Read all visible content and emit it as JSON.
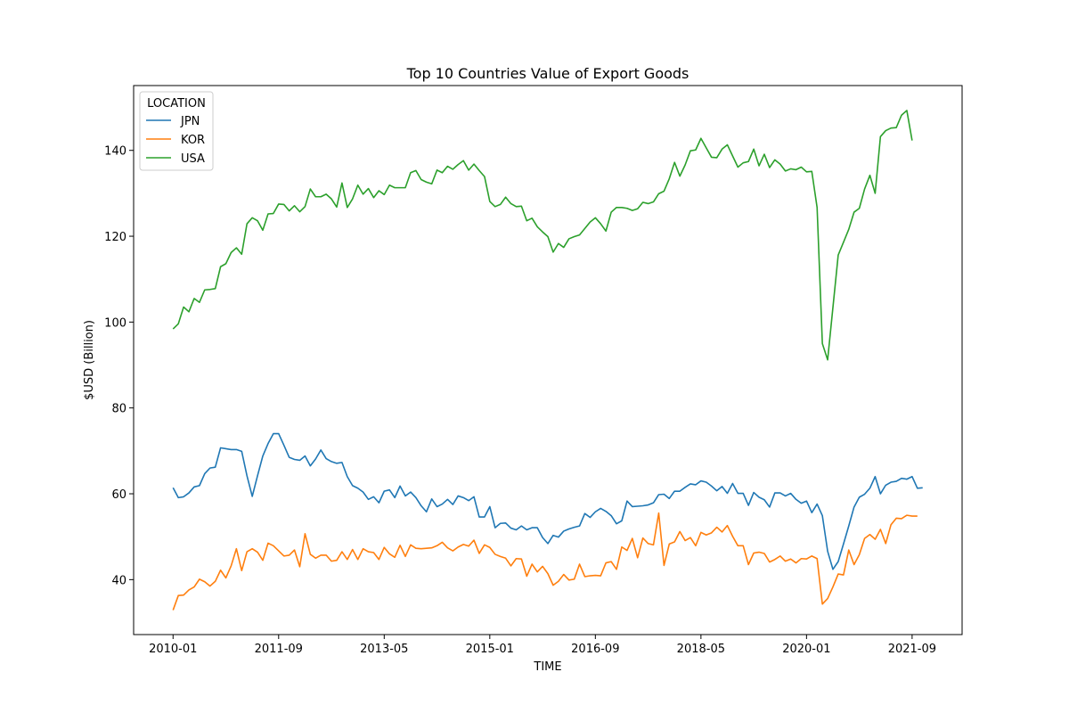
{
  "chart_data": {
    "type": "line",
    "title": "Top 10 Countries Value of Export Goods",
    "xlabel": "TIME",
    "ylabel": "$USD (Billion)",
    "x_ticks": [
      "2010-01",
      "2011-09",
      "2013-05",
      "2015-01",
      "2016-09",
      "2018-05",
      "2020-01",
      "2021-09"
    ],
    "y_ticks": [
      40,
      60,
      80,
      100,
      120,
      140
    ],
    "ylim": [
      27.2,
      155.1
    ],
    "legend_title": "LOCATION",
    "legend_position": "upper-left",
    "grid": false,
    "x_start": "2010-01",
    "series": [
      {
        "name": "JPN",
        "color": "#1f77b4",
        "values": [
          61.4,
          59.1,
          59.3,
          60.2,
          61.6,
          61.9,
          64.7,
          66.0,
          66.2,
          70.7,
          70.5,
          70.3,
          70.3,
          69.9,
          64.2,
          59.4,
          64.2,
          68.8,
          71.7,
          74.0,
          74.0,
          71.3,
          68.5,
          68.0,
          67.8,
          68.8,
          66.5,
          68.1,
          70.2,
          68.2,
          67.5,
          67.1,
          67.3,
          64.0,
          61.9,
          61.3,
          60.4,
          58.7,
          59.3,
          57.9,
          60.6,
          60.9,
          59.1,
          61.8,
          59.5,
          60.4,
          59.1,
          57.2,
          55.8,
          58.8,
          57.0,
          57.6,
          58.7,
          57.5,
          59.5,
          59.1,
          58.4,
          59.3,
          54.6,
          54.6,
          57.0,
          52.1,
          53.1,
          53.2,
          52.0,
          51.6,
          52.5,
          51.6,
          52.1,
          52.1,
          49.8,
          48.4,
          50.3,
          49.9,
          51.3,
          51.8,
          52.2,
          52.5,
          55.4,
          54.5,
          55.8,
          56.6,
          55.9,
          54.9,
          53.0,
          53.7,
          58.3,
          57.0,
          57.1,
          57.2,
          57.4,
          57.9,
          59.8,
          59.9,
          58.9,
          60.6,
          60.6,
          61.5,
          62.3,
          62.1,
          63.0,
          62.7,
          61.8,
          60.7,
          61.7,
          60.1,
          62.4,
          60.1,
          60.1,
          57.3,
          60.3,
          59.2,
          58.6,
          56.9,
          60.2,
          60.2,
          59.5,
          60.1,
          58.7,
          57.8,
          58.3,
          55.6,
          57.6,
          54.9,
          46.6,
          42.4,
          44.2,
          48.3,
          52.5,
          56.9,
          59.2,
          59.9,
          61.3,
          64.0,
          60.0,
          62.0,
          62.7,
          62.9,
          63.6,
          63.4,
          64.0,
          61.3,
          61.4
        ]
      },
      {
        "name": "KOR",
        "color": "#ff7f0e",
        "values": [
          32.9,
          36.3,
          36.4,
          37.6,
          38.3,
          40.1,
          39.5,
          38.5,
          39.6,
          42.2,
          40.4,
          43.2,
          47.2,
          42.1,
          46.5,
          47.2,
          46.4,
          44.5,
          48.5,
          47.9,
          46.7,
          45.5,
          45.7,
          46.9,
          43.0,
          50.7,
          45.9,
          45.0,
          45.7,
          45.7,
          44.3,
          44.5,
          46.5,
          44.7,
          47.0,
          44.7,
          47.2,
          46.5,
          46.3,
          44.7,
          47.5,
          46.0,
          45.2,
          48.0,
          45.4,
          48.1,
          47.3,
          47.2,
          47.3,
          47.4,
          47.9,
          48.7,
          47.4,
          46.7,
          47.6,
          48.2,
          47.8,
          49.2,
          46.1,
          48.1,
          47.5,
          45.9,
          45.4,
          45.0,
          43.2,
          44.9,
          44.8,
          40.8,
          43.6,
          41.8,
          43.1,
          41.4,
          38.7,
          39.6,
          41.2,
          39.9,
          40.1,
          43.6,
          40.7,
          40.9,
          41.0,
          40.9,
          43.9,
          44.2,
          42.4,
          47.6,
          46.8,
          49.6,
          45.1,
          49.7,
          48.4,
          48.1,
          55.5,
          43.3,
          48.3,
          48.8,
          51.2,
          49.1,
          49.8,
          47.9,
          51.0,
          50.4,
          50.9,
          52.2,
          51.1,
          52.6,
          50.1,
          47.9,
          47.9,
          43.5,
          46.2,
          46.4,
          46.1,
          44.1,
          44.7,
          45.5,
          44.3,
          44.8,
          43.9,
          44.9,
          44.8,
          45.5,
          44.9,
          34.3,
          35.6,
          38.3,
          41.3,
          41.1,
          46.9,
          43.5,
          45.8,
          49.6,
          50.5,
          49.4,
          51.7,
          48.4,
          52.8,
          54.3,
          54.2,
          55.0,
          54.8,
          54.8
        ]
      },
      {
        "name": "USA",
        "color": "#2ca02c",
        "values": [
          98.4,
          99.6,
          103.5,
          102.4,
          105.5,
          104.6,
          107.5,
          107.6,
          107.8,
          112.9,
          113.6,
          116.2,
          117.3,
          115.8,
          122.9,
          124.3,
          123.6,
          121.4,
          125.2,
          125.3,
          127.5,
          127.4,
          125.9,
          127.1,
          125.7,
          126.9,
          131.0,
          129.2,
          129.2,
          129.8,
          128.7,
          126.8,
          132.4,
          126.7,
          128.7,
          131.9,
          129.8,
          131.1,
          129.0,
          130.6,
          129.7,
          131.9,
          131.3,
          131.3,
          131.3,
          134.8,
          135.3,
          133.2,
          132.6,
          132.2,
          135.4,
          134.8,
          136.3,
          135.6,
          136.7,
          137.6,
          135.4,
          136.8,
          135.3,
          133.9,
          128.1,
          126.9,
          127.4,
          129.1,
          127.6,
          126.9,
          127.0,
          123.6,
          124.2,
          122.2,
          121.0,
          119.9,
          116.3,
          118.3,
          117.4,
          119.4,
          119.9,
          120.3,
          121.8,
          123.3,
          124.3,
          122.9,
          121.2,
          125.6,
          126.7,
          126.7,
          126.5,
          126.0,
          126.4,
          127.9,
          127.6,
          128.0,
          129.9,
          130.5,
          133.4,
          137.2,
          134.0,
          136.6,
          139.9,
          140.1,
          142.8,
          140.6,
          138.4,
          138.3,
          140.3,
          141.3,
          138.7,
          136.1,
          137.1,
          137.4,
          140.3,
          136.4,
          139.1,
          136.0,
          137.8,
          136.8,
          135.2,
          135.7,
          135.5,
          136.1,
          135.0,
          135.1,
          126.7,
          95.0,
          91.2,
          103.4,
          115.6,
          118.6,
          121.6,
          125.6,
          126.5,
          131.0,
          134.2,
          130.0,
          143.2,
          144.6,
          145.2,
          145.3,
          148.2,
          149.3,
          142.3
        ]
      }
    ]
  }
}
